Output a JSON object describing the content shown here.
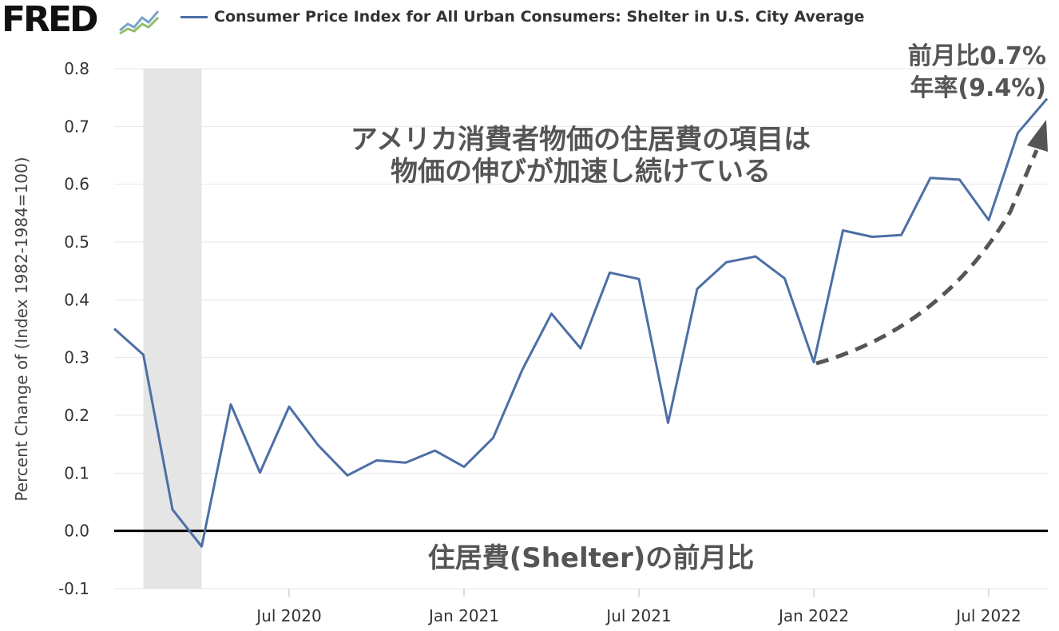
{
  "header": {
    "logo": "FRED",
    "logo_mark_icon": "fred-chart-icon",
    "legend_label": "Consumer Price Index for All Urban Consumers: Shelter in U.S. City Average",
    "legend_color": "#4c6fa5"
  },
  "chart_data": {
    "type": "line",
    "ylabel": "Percent Change of (Index 1982-1984=100)",
    "ylim": [
      -0.1,
      0.8
    ],
    "y_ticks": [
      "0.8",
      "0.7",
      "0.6",
      "0.5",
      "0.4",
      "0.3",
      "0.2",
      "0.1",
      "0.0",
      "-0.1"
    ],
    "x_ticks": [
      "Jul 2020",
      "Jan 2021",
      "Jul 2021",
      "Jan 2022",
      "Jul 2022"
    ],
    "x_tick_months": [
      "2020-07",
      "2021-01",
      "2021-07",
      "2022-01",
      "2022-07"
    ],
    "x_range": [
      "2020-01",
      "2022-08"
    ],
    "recession": {
      "start": "2020-02",
      "end": "2020-04",
      "color": "#e5e5e5"
    },
    "zero_line": true,
    "grid": true,
    "series": [
      {
        "name": "Consumer Price Index for All Urban Consumers: Shelter in U.S. City Average",
        "color": "#4c6fa5",
        "x": [
          "2020-01",
          "2020-02",
          "2020-03",
          "2020-04",
          "2020-05",
          "2020-06",
          "2020-07",
          "2020-08",
          "2020-09",
          "2020-10",
          "2020-11",
          "2020-12",
          "2021-01",
          "2021-02",
          "2021-03",
          "2021-04",
          "2021-05",
          "2021-06",
          "2021-07",
          "2021-08",
          "2021-09",
          "2021-10",
          "2021-11",
          "2021-12",
          "2022-01",
          "2022-02",
          "2022-03",
          "2022-04",
          "2022-05",
          "2022-06",
          "2022-07",
          "2022-08"
        ],
        "values": [
          0.35,
          0.305,
          0.037,
          -0.027,
          0.219,
          0.101,
          0.215,
          0.148,
          0.096,
          0.122,
          0.118,
          0.139,
          0.111,
          0.161,
          0.279,
          0.376,
          0.316,
          0.447,
          0.436,
          0.187,
          0.419,
          0.465,
          0.475,
          0.437,
          0.292,
          0.52,
          0.509,
          0.512,
          0.611,
          0.608,
          0.538,
          0.689
        ]
      }
    ],
    "last_point": {
      "x": "2022-09",
      "value": 0.748
    },
    "annotations": {
      "title_line1": "アメリカ消費者物価の住居費の項目は",
      "title_line2": "物価の伸びが加速し続けている",
      "latest_line1": "前月比0.7%",
      "latest_line2": "年率(9.4%)",
      "zero_label": "住居費(Shelter)の前月比",
      "trend_arrow_color": "#555555"
    }
  }
}
